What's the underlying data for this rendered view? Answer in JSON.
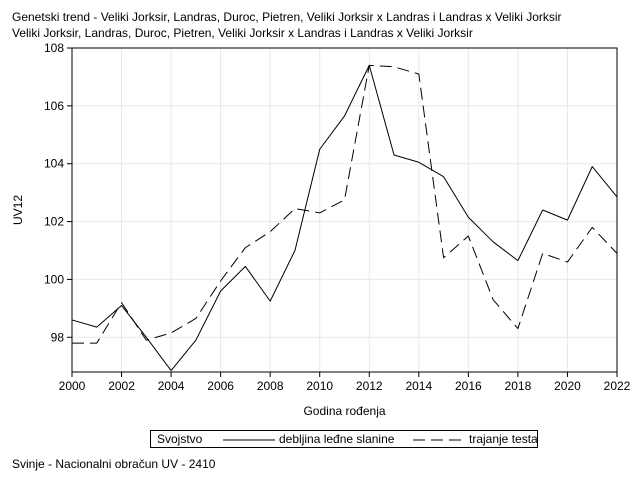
{
  "chart_data": {
    "type": "line",
    "title": "Genetski trend - Veliki Jorksir, Landras, Duroc, Pietren, Veliki Jorksir x Landras i Landras x Veliki Jorksir",
    "subtitle": "Veliki Jorksir, Landras, Duroc, Pietren, Veliki Jorksir x Landras i Landras x Veliki Jorksir",
    "xlabel": "Godina rođenja",
    "ylabel": "UV12",
    "xlim": [
      2000,
      2022
    ],
    "ylim": [
      96.8,
      108
    ],
    "xticks": [
      "2000",
      "2002",
      "2004",
      "2006",
      "2008",
      "2010",
      "2012",
      "2014",
      "2016",
      "2018",
      "2020",
      "2022"
    ],
    "yticks": [
      "98",
      "100",
      "102",
      "104",
      "106",
      "108"
    ],
    "grid": true,
    "legend_title": "Svojstvo",
    "legend_position": "bottom",
    "x": [
      2000,
      2001,
      2002,
      2003,
      2004,
      2005,
      2006,
      2007,
      2008,
      2009,
      2010,
      2011,
      2012,
      2013,
      2014,
      2015,
      2016,
      2017,
      2018,
      2019,
      2020,
      2021,
      2022
    ],
    "series": [
      {
        "name": "debljina leđne slanine",
        "style": "solid",
        "values": [
          98.6,
          98.35,
          99.1,
          98.0,
          96.85,
          97.9,
          99.6,
          100.45,
          99.25,
          101.0,
          104.5,
          105.65,
          107.4,
          104.3,
          104.05,
          103.55,
          102.15,
          101.3,
          100.65,
          102.4,
          102.05,
          103.9,
          102.85
        ]
      },
      {
        "name": "trajanje testa",
        "style": "dashed",
        "values": [
          97.8,
          97.8,
          99.2,
          97.9,
          98.15,
          98.65,
          99.95,
          101.1,
          101.65,
          102.45,
          102.3,
          102.75,
          107.4,
          107.35,
          107.1,
          100.75,
          101.5,
          99.3,
          98.3,
          100.9,
          100.6,
          101.8,
          100.9
        ]
      }
    ]
  },
  "footnote": "Svinje - Nacionalni obračun UV - 2410",
  "colors": {
    "line": "#000000",
    "grid": "#e8e8e8",
    "frame": "#000000"
  }
}
